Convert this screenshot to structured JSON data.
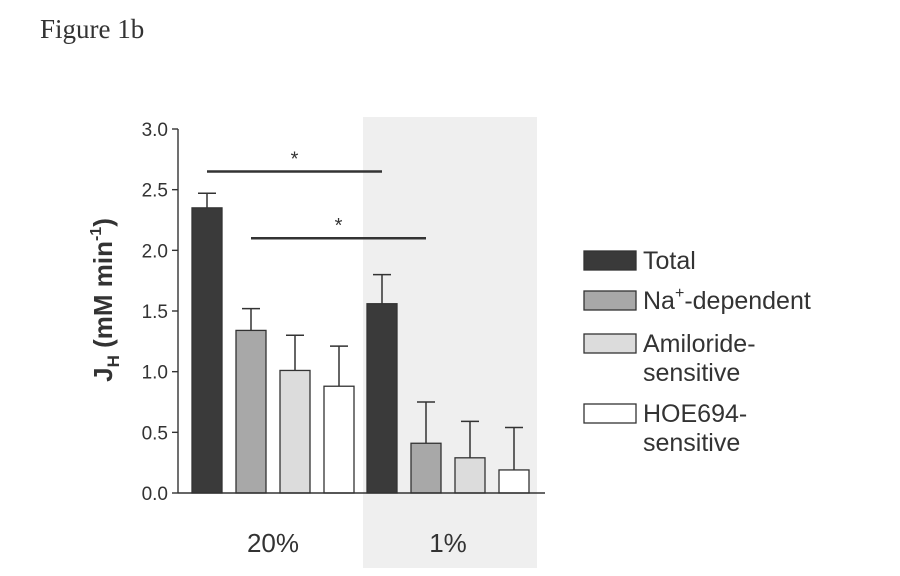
{
  "figure_label": "Figure 1b",
  "chart_data": {
    "type": "bar",
    "ylabel": {
      "main": "J",
      "sub": "H",
      "units": " (mM min",
      "sup": "-1",
      "close": ")"
    },
    "ylim": [
      0,
      3.0
    ],
    "yticks": [
      "0.0",
      "0.5",
      "1.0",
      "1.5",
      "2.0",
      "2.5",
      "3.0"
    ],
    "groups": [
      {
        "label": "20%",
        "shaded": false
      },
      {
        "label": "1%",
        "shaded": true
      }
    ],
    "series": [
      {
        "name": "Total",
        "color": "#3a3a3a",
        "values": [
          2.35,
          1.56
        ],
        "errors": [
          0.12,
          0.24
        ]
      },
      {
        "name": "Na⁺-dependent",
        "color": "#a8a8a8",
        "values": [
          1.34,
          0.41
        ],
        "errors": [
          0.18,
          0.34
        ]
      },
      {
        "name": "Amiloride-sensitive",
        "color": "#dcdcdc",
        "values": [
          1.01,
          0.29
        ],
        "errors": [
          0.29,
          0.3
        ]
      },
      {
        "name": "HOE694-sensitive",
        "color": "#ffffff",
        "values": [
          0.88,
          0.19
        ],
        "errors": [
          0.33,
          0.35
        ]
      }
    ],
    "legend": [
      {
        "line1": "Total",
        "line2": "",
        "color": "#3a3a3a"
      },
      {
        "line1": "Na",
        "sup": "+",
        "rest": "-dependent",
        "line2": "",
        "color": "#a8a8a8"
      },
      {
        "line1": "Amiloride-",
        "line2": "sensitive",
        "color": "#dcdcdc"
      },
      {
        "line1": "HOE694-",
        "line2": "sensitive",
        "color": "#ffffff"
      }
    ],
    "legend_position": "right",
    "annotations": [
      {
        "text": "*",
        "from_series": 0,
        "from_group": 0,
        "to_series": 0,
        "to_group": 1,
        "y": 2.65
      },
      {
        "text": "*",
        "from_series": 1,
        "from_group": 0,
        "to_series": 1,
        "to_group": 1,
        "y": 2.1
      }
    ]
  }
}
